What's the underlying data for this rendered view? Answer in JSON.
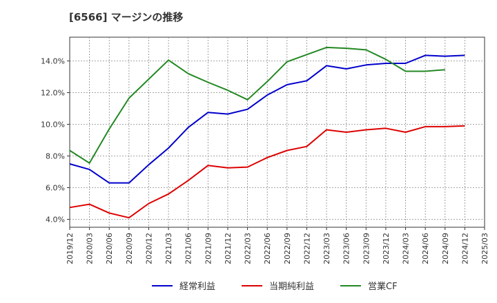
{
  "title": "[6566]  マージンの推移",
  "chart_data": {
    "type": "line",
    "x": [
      "2019/12",
      "2020/03",
      "2020/06",
      "2020/09",
      "2020/12",
      "2021/03",
      "2021/06",
      "2021/09",
      "2021/12",
      "2022/03",
      "2022/06",
      "2022/09",
      "2022/12",
      "2023/03",
      "2023/06",
      "2023/09",
      "2023/12",
      "2024/03",
      "2024/06",
      "2024/09",
      "2024/12",
      "2025/03"
    ],
    "ylim": [
      3.5,
      15.5
    ],
    "yticks": [
      4,
      6,
      8,
      10,
      12,
      14
    ],
    "ytick_labels": [
      "4.0%",
      "6.0%",
      "8.0%",
      "10.0%",
      "12.0%",
      "14.0%"
    ],
    "grid": true,
    "legend_position": "bottom",
    "series": [
      {
        "name": "経常利益",
        "color": "#0000cc",
        "values": [
          7.5,
          7.15,
          6.3,
          6.3,
          7.45,
          8.5,
          9.8,
          10.75,
          10.65,
          10.95,
          11.85,
          12.5,
          12.75,
          13.7,
          13.5,
          13.75,
          13.85,
          13.85,
          14.35,
          14.3,
          14.35,
          null
        ]
      },
      {
        "name": "当期純利益",
        "color": "#dd0000",
        "values": [
          4.75,
          4.95,
          4.4,
          4.1,
          5.0,
          5.6,
          6.45,
          7.4,
          7.25,
          7.3,
          7.9,
          8.35,
          8.6,
          9.65,
          9.5,
          9.65,
          9.75,
          9.5,
          9.85,
          9.85,
          9.9,
          null
        ]
      },
      {
        "name": "営業CF",
        "color": "#228822",
        "values": [
          8.35,
          7.55,
          9.7,
          11.65,
          12.85,
          14.05,
          13.2,
          12.65,
          12.15,
          11.55,
          12.7,
          13.95,
          14.4,
          14.85,
          14.8,
          14.7,
          14.1,
          13.35,
          13.35,
          13.45,
          null,
          null
        ]
      }
    ]
  }
}
